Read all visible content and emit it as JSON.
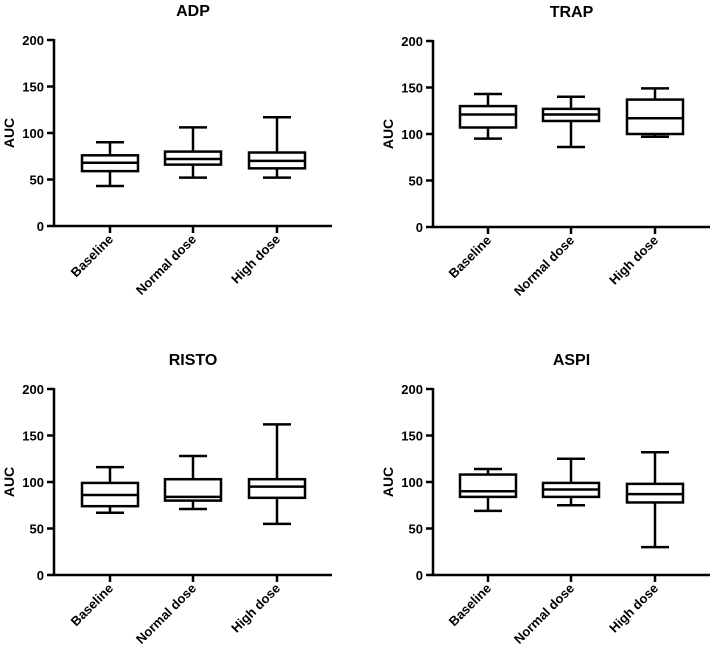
{
  "chart_data": [
    {
      "type": "box",
      "title": "ADP",
      "ylabel": "AUC",
      "xlabel": "",
      "ylim": [
        0,
        200
      ],
      "yticks": [
        0,
        50,
        100,
        150,
        200
      ],
      "categories": [
        "Baseline",
        "Normal dose",
        "High dose"
      ],
      "boxes": [
        {
          "min": 43,
          "q1": 59,
          "median": 68,
          "q3": 76,
          "max": 90
        },
        {
          "min": 52,
          "q1": 66,
          "median": 72,
          "q3": 80,
          "max": 106
        },
        {
          "min": 52,
          "q1": 62,
          "median": 70,
          "q3": 79,
          "max": 117
        }
      ]
    },
    {
      "type": "box",
      "title": "TRAP",
      "ylabel": "AUC",
      "xlabel": "",
      "ylim": [
        0,
        200
      ],
      "yticks": [
        0,
        50,
        100,
        150,
        200
      ],
      "categories": [
        "Baseline",
        "Normal dose",
        "High dose"
      ],
      "boxes": [
        {
          "min": 95,
          "q1": 107,
          "median": 121,
          "q3": 130,
          "max": 143
        },
        {
          "min": 86,
          "q1": 114,
          "median": 121,
          "q3": 127,
          "max": 140
        },
        {
          "min": 97,
          "q1": 100,
          "median": 117,
          "q3": 137,
          "max": 149
        }
      ]
    },
    {
      "type": "box",
      "title": "RISTO",
      "ylabel": "AUC",
      "xlabel": "",
      "ylim": [
        0,
        200
      ],
      "yticks": [
        0,
        50,
        100,
        150,
        200
      ],
      "categories": [
        "Baseline",
        "Normal dose",
        "High dose"
      ],
      "boxes": [
        {
          "min": 67,
          "q1": 74,
          "median": 86,
          "q3": 99,
          "max": 116
        },
        {
          "min": 71,
          "q1": 80,
          "median": 84,
          "q3": 103,
          "max": 128
        },
        {
          "min": 55,
          "q1": 83,
          "median": 95,
          "q3": 103,
          "max": 162
        }
      ]
    },
    {
      "type": "box",
      "title": "ASPI",
      "ylabel": "AUC",
      "xlabel": "",
      "ylim": [
        0,
        200
      ],
      "yticks": [
        0,
        50,
        100,
        150,
        200
      ],
      "categories": [
        "Baseline",
        "Normal dose",
        "High dose"
      ],
      "boxes": [
        {
          "min": 69,
          "q1": 84,
          "median": 90,
          "q3": 108,
          "max": 114
        },
        {
          "min": 75,
          "q1": 84,
          "median": 92,
          "q3": 99,
          "max": 125
        },
        {
          "min": 30,
          "q1": 78,
          "median": 87,
          "q3": 98,
          "max": 132
        }
      ]
    }
  ]
}
